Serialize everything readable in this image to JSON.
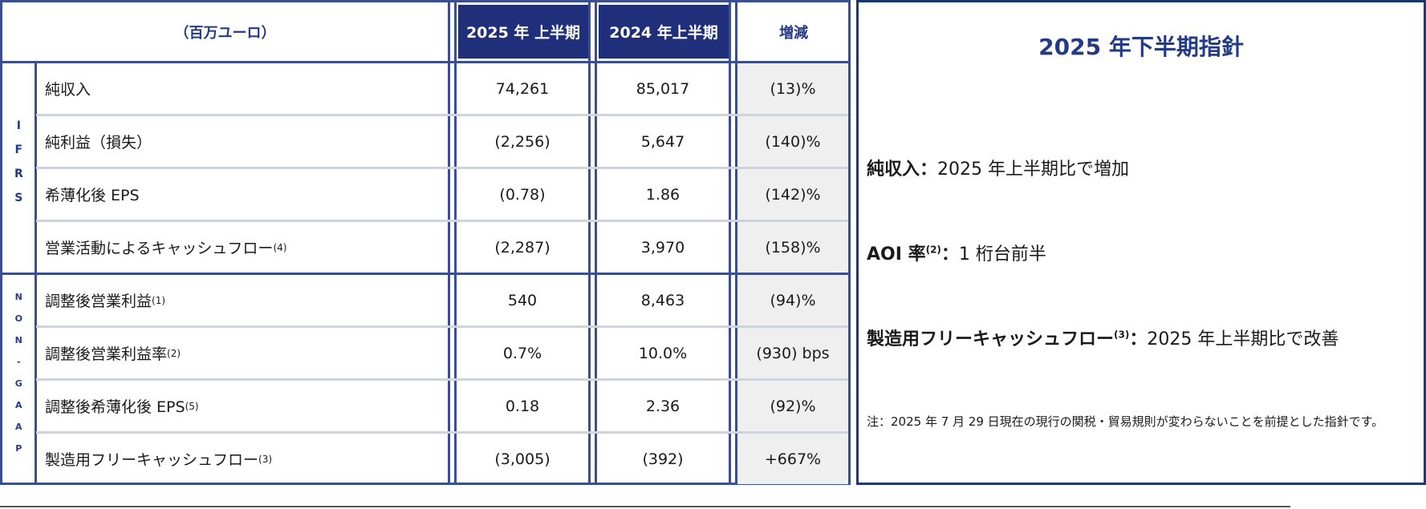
{
  "table": {
    "header": {
      "unit": "（百万ユーロ）",
      "col_current": "2025 年 上半期",
      "col_prior": "2024 年上半期",
      "col_change": "増減"
    },
    "groups": {
      "ifrs": "IFRS",
      "nongaap": "NON-GAAP"
    },
    "rows": [
      {
        "label": "純収入",
        "sup": "",
        "current": "74,261",
        "prior": "85,017",
        "change": "(13)%"
      },
      {
        "label": "純利益（損失）",
        "sup": "",
        "current": "(2,256)",
        "prior": "5,647",
        "change": "(140)%"
      },
      {
        "label": "希薄化後 EPS",
        "sup": "",
        "current": "(0.78)",
        "prior": "1.86",
        "change": "(142)%"
      },
      {
        "label": "営業活動によるキャッシュフロー",
        "sup": "(4)",
        "current": "(2,287)",
        "prior": "3,970",
        "change": "(158)%"
      },
      {
        "label": "調整後営業利益",
        "sup": "(1)",
        "current": "540",
        "prior": "8,463",
        "change": "(94)%"
      },
      {
        "label": "調整後営業利益率",
        "sup": "(2)",
        "current": "0.7%",
        "prior": "10.0%",
        "change": "(930) bps"
      },
      {
        "label": "調整後希薄化後 EPS",
        "sup": "(5)",
        "current": "0.18",
        "prior": "2.36",
        "change": "(92)%"
      },
      {
        "label": "製造用フリーキャッシュフロー",
        "sup": "(3)",
        "current": "(3,005)",
        "prior": "(392)",
        "change": "+667%"
      }
    ]
  },
  "guidance": {
    "title": "2025 年下半期指針",
    "items": [
      {
        "label": "純収入",
        "sup": "",
        "text": "2025 年上半期比で増加"
      },
      {
        "label": "AOI 率",
        "sup": "(2)",
        "text": "1 桁台前半"
      },
      {
        "label": "製造用フリーキャッシュフロー",
        "sup": "(3)",
        "text": "2025 年上半期比で改善"
      }
    ],
    "colon": "：",
    "note": "注：2025 年 7 月 29 日現在の現行の関税・貿易規則が変わらないことを前提とした指針です。"
  }
}
